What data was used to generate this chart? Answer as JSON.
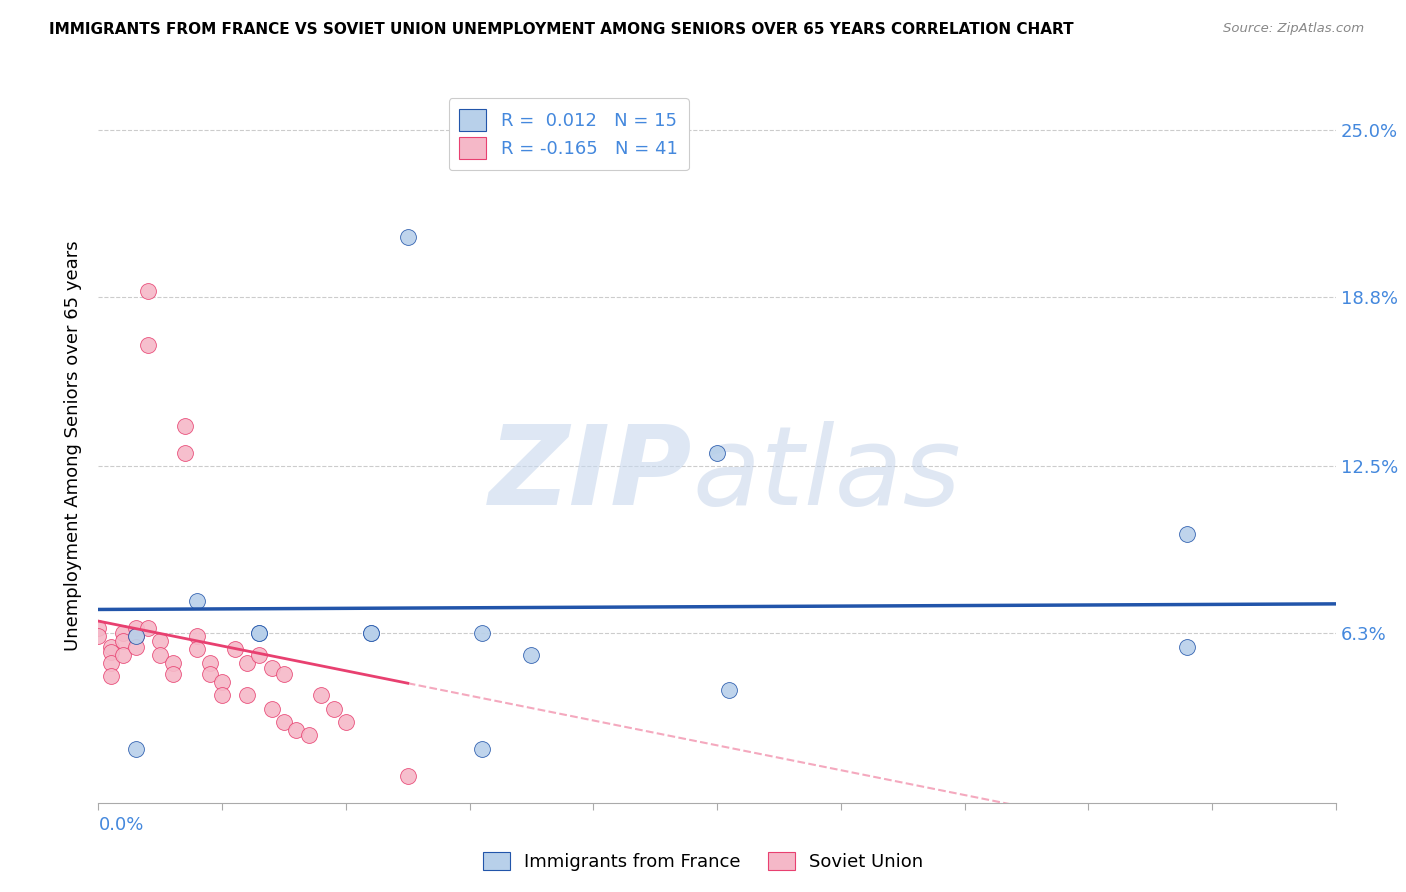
{
  "title": "IMMIGRANTS FROM FRANCE VS SOVIET UNION UNEMPLOYMENT AMONG SENIORS OVER 65 YEARS CORRELATION CHART",
  "source": "Source: ZipAtlas.com",
  "ylabel": "Unemployment Among Seniors over 65 years",
  "xlim": [
    0.0,
    0.1
  ],
  "ylim": [
    0.0,
    0.265
  ],
  "yticks": [
    0.063,
    0.125,
    0.188,
    0.25
  ],
  "ytick_labels": [
    "6.3%",
    "12.5%",
    "18.8%",
    "25.0%"
  ],
  "legend_blue_R": "0.012",
  "legend_blue_N": "15",
  "legend_pink_R": "-0.165",
  "legend_pink_N": "41",
  "blue_color": "#b8d0ea",
  "pink_color": "#f5b8c8",
  "blue_line_color": "#2255aa",
  "pink_line_color": "#e84070",
  "france_x": [
    0.003,
    0.008,
    0.013,
    0.013,
    0.022,
    0.022,
    0.025,
    0.031,
    0.035,
    0.05,
    0.088,
    0.088,
    0.051,
    0.031,
    0.003
  ],
  "france_y": [
    0.062,
    0.075,
    0.063,
    0.063,
    0.063,
    0.063,
    0.21,
    0.063,
    0.055,
    0.13,
    0.1,
    0.058,
    0.042,
    0.02,
    0.02
  ],
  "soviet_x": [
    0.0,
    0.0,
    0.001,
    0.001,
    0.001,
    0.001,
    0.002,
    0.002,
    0.002,
    0.003,
    0.003,
    0.003,
    0.004,
    0.004,
    0.004,
    0.005,
    0.005,
    0.006,
    0.006,
    0.007,
    0.007,
    0.008,
    0.008,
    0.009,
    0.009,
    0.01,
    0.01,
    0.011,
    0.012,
    0.012,
    0.013,
    0.014,
    0.014,
    0.015,
    0.015,
    0.016,
    0.017,
    0.018,
    0.019,
    0.02,
    0.025
  ],
  "soviet_y": [
    0.065,
    0.062,
    0.058,
    0.056,
    0.052,
    0.047,
    0.063,
    0.06,
    0.055,
    0.065,
    0.062,
    0.058,
    0.19,
    0.17,
    0.065,
    0.06,
    0.055,
    0.052,
    0.048,
    0.14,
    0.13,
    0.062,
    0.057,
    0.052,
    0.048,
    0.045,
    0.04,
    0.057,
    0.052,
    0.04,
    0.055,
    0.05,
    0.035,
    0.048,
    0.03,
    0.027,
    0.025,
    0.04,
    0.035,
    0.03,
    0.01
  ],
  "grid_color": "#cccccc",
  "spine_color": "#aaaaaa",
  "axis_label_color": "#4488dd",
  "title_fontsize": 11,
  "axis_fontsize": 13,
  "watermark_zip_color": "#c8d8ee",
  "watermark_atlas_color": "#c0d0e8"
}
